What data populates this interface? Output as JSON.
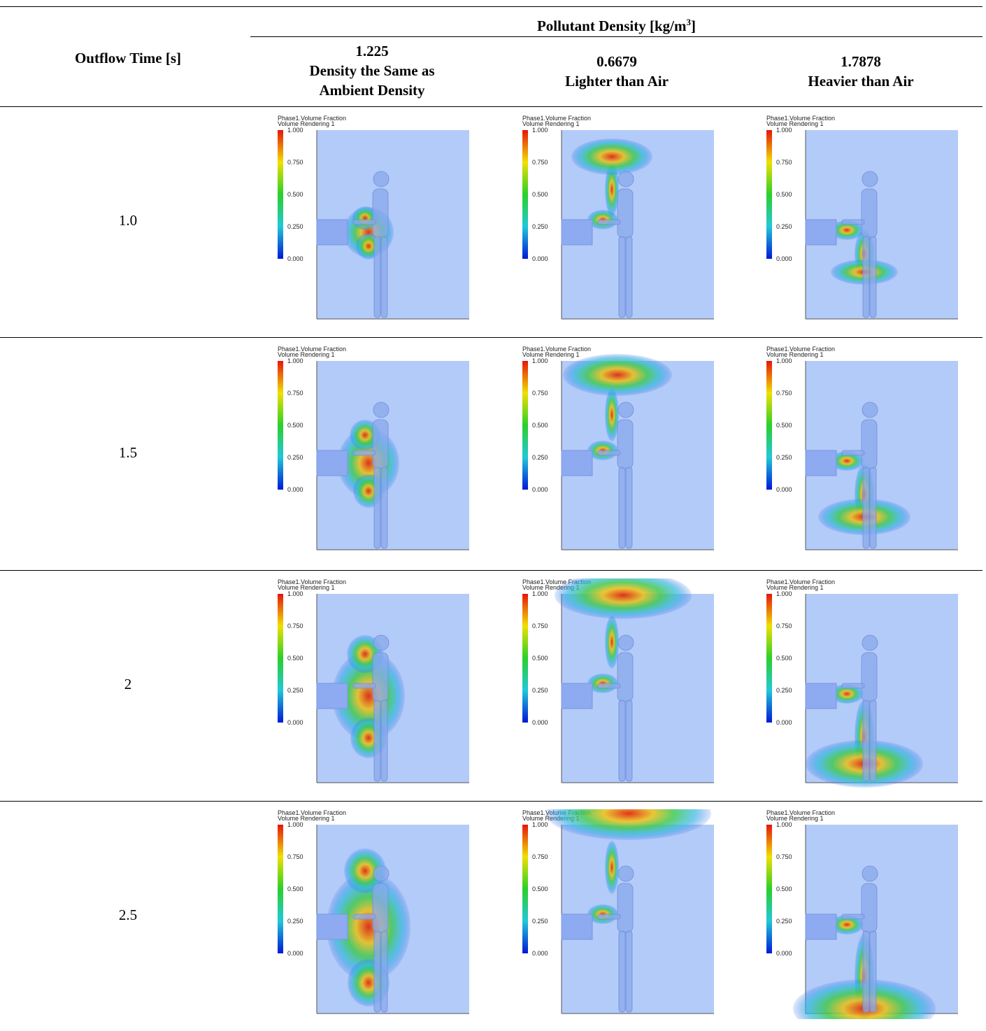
{
  "header": {
    "group_title": {
      "text": "Pollutant Density [kg/m",
      "sup": "3",
      "tail": "]"
    },
    "row_header": "Outflow Time [s]",
    "columns": [
      [
        "1.225",
        "Density the Same as",
        "Ambient Density"
      ],
      [
        "0.6679",
        "Lighter than Air"
      ],
      [
        "1.7878",
        "Heavier than Air"
      ]
    ]
  },
  "legend": {
    "title": "Phase1.Volume Fraction",
    "subtitle": "Volume Rendering 1",
    "ticks": [
      "1.000",
      "0.750",
      "0.500",
      "0.250",
      "0.000"
    ]
  },
  "rows": [
    "1.0",
    "1.5",
    "2",
    "2.5"
  ]
}
